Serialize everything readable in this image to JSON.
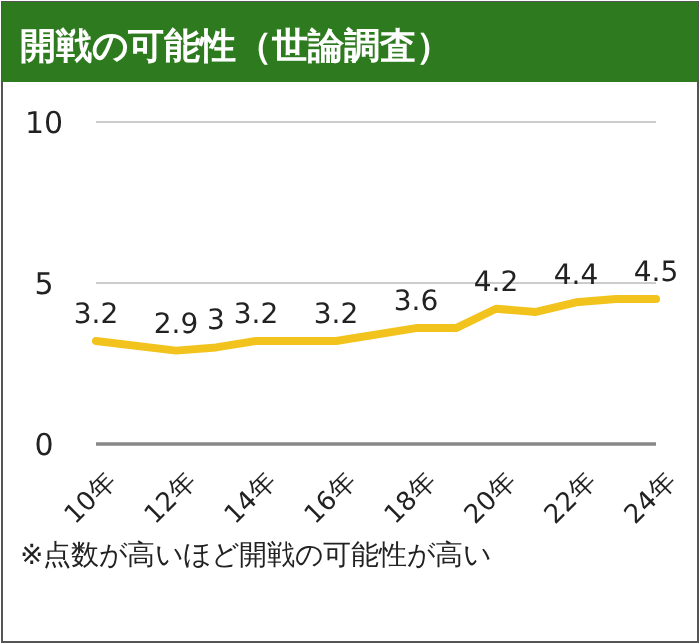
{
  "chart_data": {
    "type": "line",
    "title": "開戦の可能性（世論調査）",
    "x": [
      10,
      12,
      13,
      14,
      16,
      18,
      19,
      20,
      21,
      22,
      23,
      24
    ],
    "series": [
      {
        "color": "#f2c31c",
        "values": [
          3.2,
          2.9,
          3,
          3.2,
          3.2,
          3.6,
          3.6,
          4.2,
          4.1,
          4.4,
          4.5,
          4.5
        ],
        "value_labels": [
          "3.2",
          "2.9",
          "3",
          "3.2",
          "3.2",
          "3.6",
          null,
          "4.2",
          null,
          "4.4",
          null,
          "4.5"
        ]
      }
    ],
    "xlim": [
      10,
      24
    ],
    "xticks": [
      {
        "value": 10,
        "label": "10年"
      },
      {
        "value": 12,
        "label": "12年"
      },
      {
        "value": 14,
        "label": "14年"
      },
      {
        "value": 16,
        "label": "16年"
      },
      {
        "value": 18,
        "label": "18年"
      },
      {
        "value": 20,
        "label": "20年"
      },
      {
        "value": 22,
        "label": "22年"
      },
      {
        "value": 24,
        "label": "24年"
      }
    ],
    "ylim": [
      0,
      10
    ],
    "yticks": [
      0,
      5,
      10
    ],
    "grid": "y",
    "marker": "none",
    "line_style": "solid",
    "annotations": [
      "※点数が高いほど開戦の可能性が高い"
    ]
  }
}
